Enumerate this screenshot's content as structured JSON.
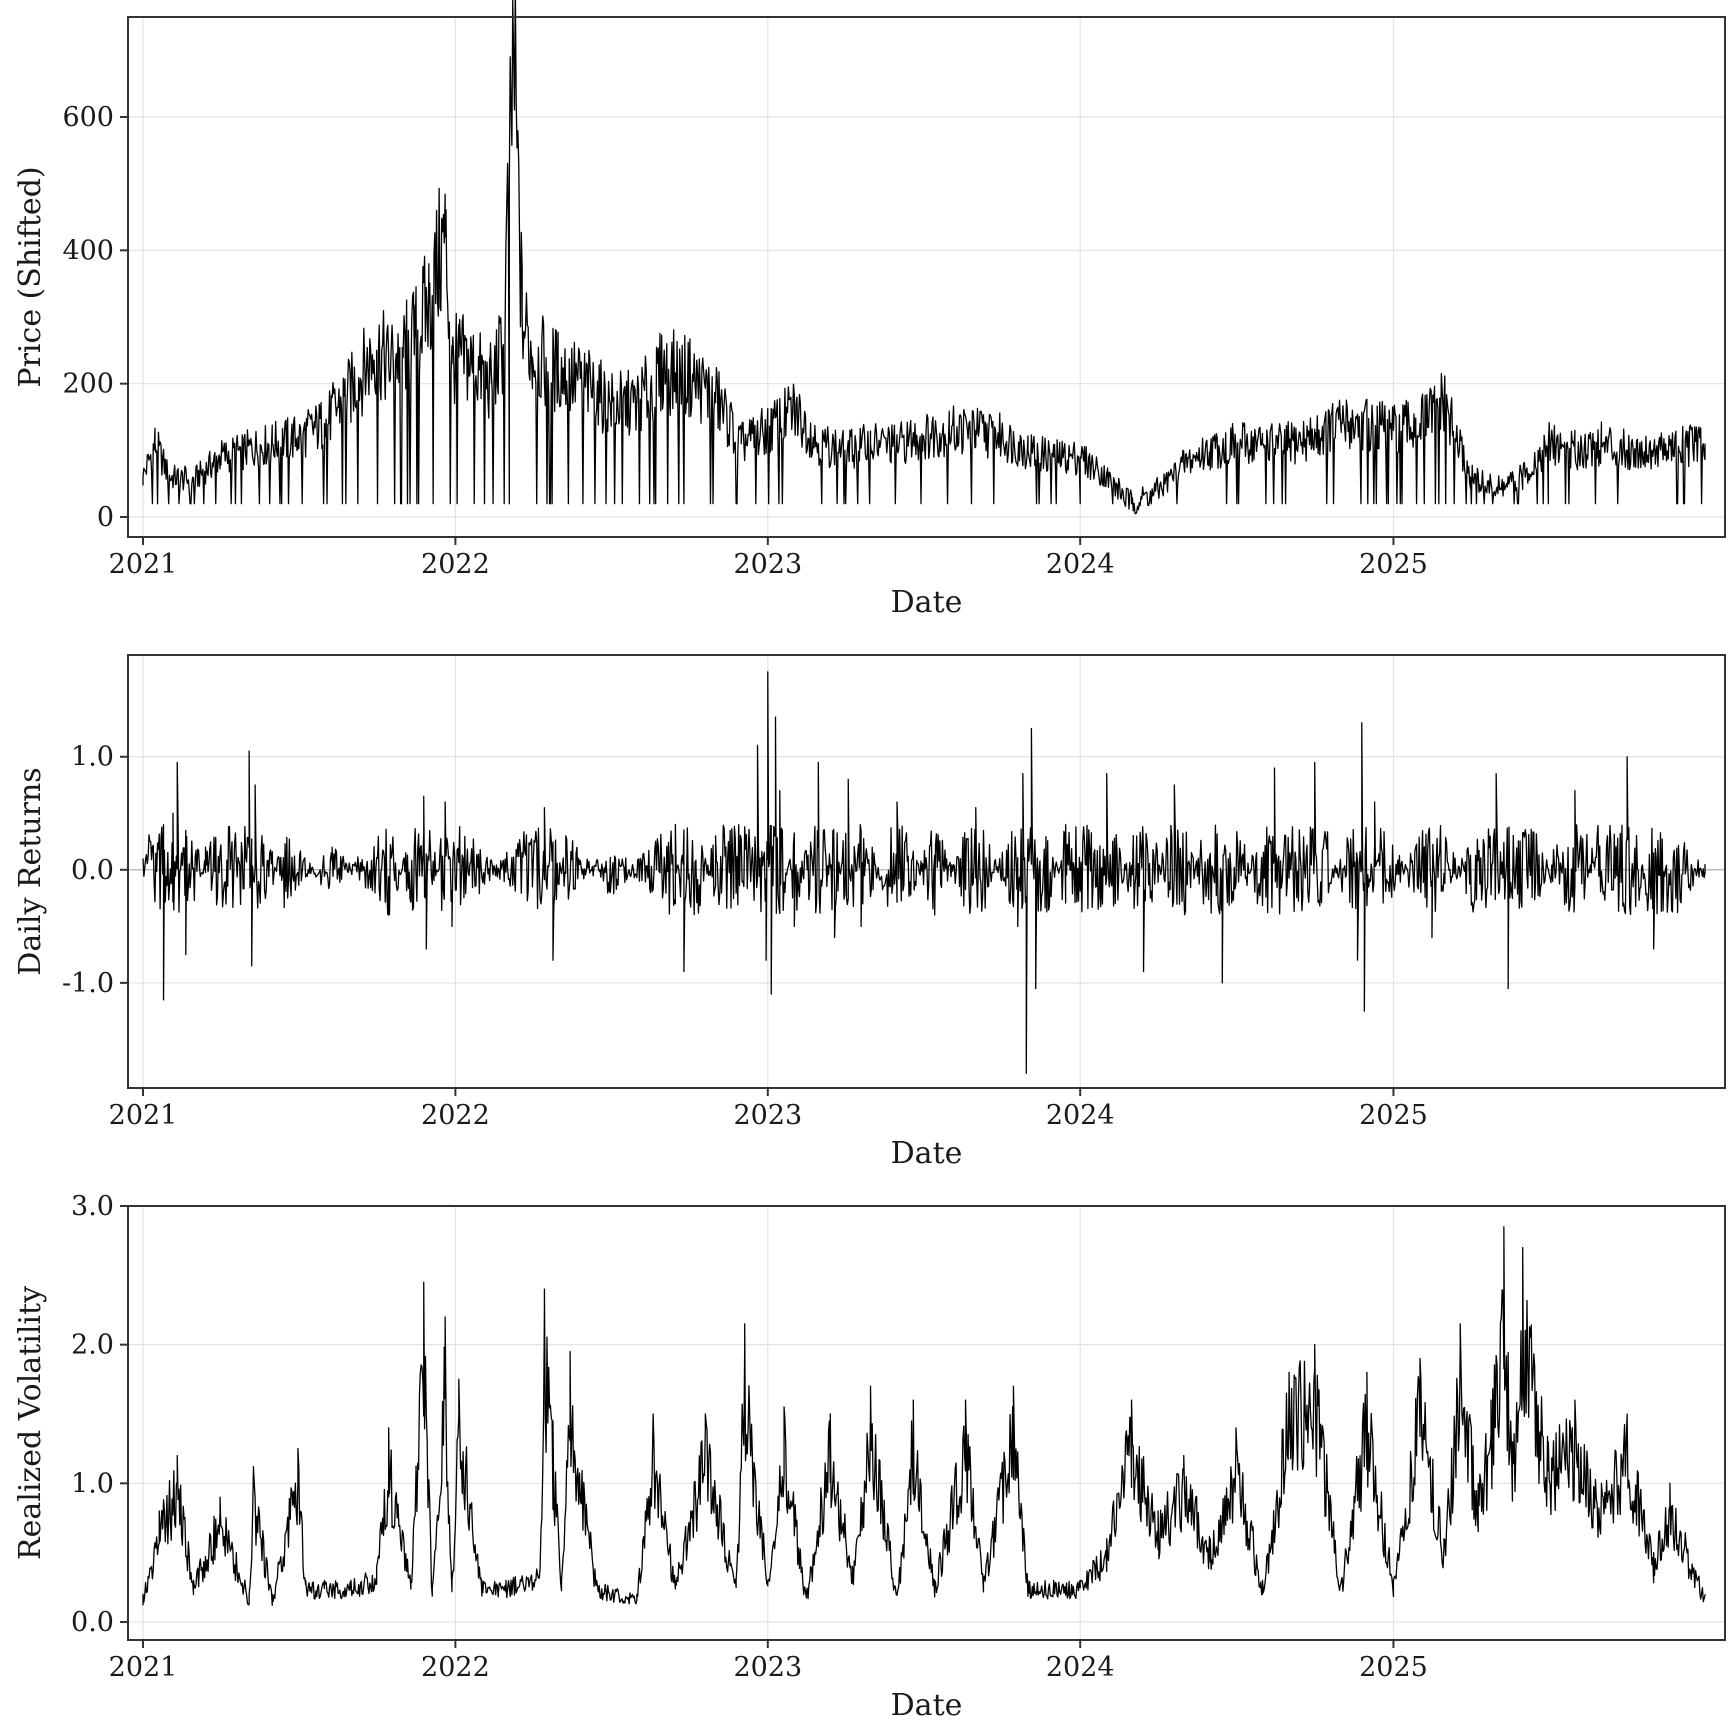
{
  "chart_data": [
    {
      "type": "line",
      "xlabel": "Date",
      "ylabel": "Price (Shifted)",
      "x_range": [
        "2021-01-01",
        "2025-12-31"
      ],
      "x_ticks": [
        "2021",
        "2022",
        "2023",
        "2024",
        "2025"
      ],
      "ylim": [
        -30,
        750
      ],
      "y_ticks": [
        0,
        200,
        400,
        600
      ],
      "y_tick_labels": [
        "0",
        "200",
        "400",
        "600"
      ],
      "grid": true,
      "series_color": "#000000",
      "series": [
        {
          "x": [
            "2021-01-01",
            "2021-01-15",
            "2021-02-01",
            "2021-03-01",
            "2021-04-01",
            "2021-05-01",
            "2021-06-01",
            "2021-07-01",
            "2021-08-01",
            "2021-09-01",
            "2021-10-01",
            "2021-10-15",
            "2021-11-01",
            "2021-11-15",
            "2021-12-01",
            "2021-12-20",
            "2021-12-28",
            "2022-01-05",
            "2022-01-20",
            "2022-02-10",
            "2022-02-25",
            "2022-03-05",
            "2022-03-10",
            "2022-03-20",
            "2022-04-01",
            "2022-05-01",
            "2022-06-01",
            "2022-07-01",
            "2022-08-01",
            "2022-09-01",
            "2022-10-01",
            "2022-11-01",
            "2022-12-01",
            "2023-01-01",
            "2023-02-01",
            "2023-03-01",
            "2023-04-01",
            "2023-05-01",
            "2023-06-01",
            "2023-07-01",
            "2023-08-01",
            "2023-09-01",
            "2023-10-01",
            "2023-11-01",
            "2023-12-01",
            "2024-01-01",
            "2024-02-01",
            "2024-03-01",
            "2024-04-01",
            "2024-05-01",
            "2024-06-01",
            "2024-07-01",
            "2024-08-01",
            "2024-09-01",
            "2024-10-01",
            "2024-11-01",
            "2024-12-01",
            "2025-01-01",
            "2025-02-01",
            "2025-03-01",
            "2025-04-01",
            "2025-05-01",
            "2025-06-01",
            "2025-07-01",
            "2025-08-01",
            "2025-09-01",
            "2025-10-01",
            "2025-11-01",
            "2025-12-31"
          ],
          "values": [
            60,
            110,
            60,
            55,
            90,
            100,
            110,
            120,
            140,
            190,
            250,
            230,
            250,
            270,
            320,
            420,
            230,
            240,
            230,
            200,
            250,
            500,
            700,
            300,
            240,
            220,
            200,
            170,
            170,
            220,
            210,
            180,
            110,
            130,
            160,
            110,
            100,
            110,
            110,
            120,
            130,
            130,
            120,
            100,
            90,
            90,
            60,
            20,
            40,
            80,
            100,
            110,
            110,
            110,
            120,
            140,
            140,
            130,
            140,
            170,
            60,
            40,
            60,
            110,
            100,
            110,
            100,
            100,
            110
          ]
        }
      ]
    },
    {
      "type": "line",
      "xlabel": "Date",
      "ylabel": "Daily Returns",
      "x_range": [
        "2021-01-01",
        "2025-12-31"
      ],
      "x_ticks": [
        "2021",
        "2022",
        "2023",
        "2024",
        "2025"
      ],
      "ylim": [
        -1.93,
        1.9
      ],
      "y_ticks": [
        -1.0,
        0.0,
        1.0
      ],
      "y_tick_labels": [
        "-1.0",
        "0.0",
        "1.0"
      ],
      "grid": true,
      "zero_line": true,
      "series_color": "#000000",
      "series": [
        {
          "x": [
            "2021-01-01",
            "2021-01-25",
            "2021-02-05",
            "2021-02-10",
            "2021-02-20",
            "2021-03-15",
            "2021-05-05",
            "2021-05-08",
            "2021-05-12",
            "2021-06-15",
            "2021-08-10",
            "2021-10-15",
            "2021-11-25",
            "2021-11-28",
            "2021-12-20",
            "2021-12-28",
            "2022-04-15",
            "2022-04-25",
            "2022-05-10",
            "2022-07-01",
            "2022-09-15",
            "2022-09-25",
            "2022-11-01",
            "2022-12-20",
            "2022-12-30",
            "2023-01-01",
            "2023-01-05",
            "2023-01-10",
            "2023-01-15",
            "2023-02-01",
            "2023-03-01",
            "2023-03-20",
            "2023-04-05",
            "2023-04-20",
            "2023-06-01",
            "2023-07-15",
            "2023-09-01",
            "2023-10-20",
            "2023-10-26",
            "2023-10-30",
            "2023-11-05",
            "2023-11-10",
            "2023-12-15",
            "2024-02-01",
            "2024-03-15",
            "2024-04-20",
            "2024-06-15",
            "2024-08-15",
            "2024-10-01",
            "2024-11-20",
            "2024-11-25",
            "2024-11-28",
            "2024-12-10",
            "2025-02-15",
            "2025-05-01",
            "2025-05-15",
            "2025-08-01",
            "2025-10-01",
            "2025-11-01",
            "2025-12-31"
          ],
          "values": [
            0.1,
            -1.15,
            0.5,
            0.95,
            -0.75,
            0.2,
            1.05,
            -0.85,
            0.75,
            -0.3,
            0.2,
            -0.4,
            0.65,
            -0.7,
            0.6,
            -0.5,
            0.55,
            -0.8,
            0.3,
            -0.2,
            0.4,
            -0.9,
            0.3,
            1.1,
            -0.8,
            1.75,
            -1.1,
            1.35,
            0.7,
            -0.5,
            0.95,
            -0.6,
            0.8,
            -0.5,
            0.6,
            -0.4,
            0.55,
            -0.5,
            0.85,
            -1.8,
            1.25,
            -1.05,
            0.4,
            0.85,
            -0.9,
            0.75,
            -1.0,
            0.9,
            0.95,
            -0.8,
            1.3,
            -1.25,
            0.6,
            -0.6,
            0.85,
            -1.05,
            0.7,
            1.0,
            -0.7,
            0.05
          ]
        }
      ]
    },
    {
      "type": "line",
      "xlabel": "Date",
      "ylabel": "Realized Volatility",
      "x_range": [
        "2021-01-01",
        "2025-12-31"
      ],
      "x_ticks": [
        "2021",
        "2022",
        "2023",
        "2024",
        "2025"
      ],
      "ylim": [
        -0.13,
        3.0
      ],
      "y_ticks": [
        0.0,
        1.0,
        2.0,
        3.0
      ],
      "y_tick_labels": [
        "0.0",
        "1.0",
        "2.0",
        "3.0"
      ],
      "grid": true,
      "series_color": "#000000",
      "series": [
        {
          "x": [
            "2021-01-01",
            "2021-01-20",
            "2021-02-10",
            "2021-03-01",
            "2021-04-01",
            "2021-05-05",
            "2021-05-10",
            "2021-06-01",
            "2021-07-01",
            "2021-07-10",
            "2021-08-01",
            "2021-09-01",
            "2021-10-01",
            "2021-10-15",
            "2021-11-10",
            "2021-11-25",
            "2021-12-05",
            "2021-12-20",
            "2021-12-28",
            "2022-01-05",
            "2022-02-01",
            "2022-03-01",
            "2022-04-10",
            "2022-04-15",
            "2022-04-25",
            "2022-05-05",
            "2022-05-15",
            "2022-06-15",
            "2022-08-01",
            "2022-08-20",
            "2022-09-15",
            "2022-10-20",
            "2022-11-25",
            "2022-12-05",
            "2023-01-01",
            "2023-01-20",
            "2023-02-15",
            "2023-03-15",
            "2023-04-10",
            "2023-05-01",
            "2023-06-01",
            "2023-06-20",
            "2023-07-15",
            "2023-08-20",
            "2023-09-10",
            "2023-10-15",
            "2023-11-01",
            "2023-12-01",
            "2024-01-01",
            "2024-02-01",
            "2024-03-01",
            "2024-04-01",
            "2024-05-01",
            "2024-06-01",
            "2024-07-01",
            "2024-08-01",
            "2024-09-01",
            "2024-10-01",
            "2024-11-01",
            "2024-12-01",
            "2025-01-01",
            "2025-02-01",
            "2025-03-01",
            "2025-03-20",
            "2025-04-10",
            "2025-04-25",
            "2025-05-10",
            "2025-05-20",
            "2025-06-01",
            "2025-07-01",
            "2025-08-01",
            "2025-09-01",
            "2025-10-01",
            "2025-11-01",
            "2025-11-20",
            "2025-12-31"
          ],
          "values": [
            0.2,
            0.8,
            1.2,
            0.3,
            0.9,
            0.2,
            1.12,
            0.2,
            1.25,
            0.3,
            0.3,
            0.3,
            0.4,
            1.4,
            0.3,
            2.45,
            0.25,
            2.2,
            0.3,
            1.75,
            0.3,
            0.3,
            0.4,
            2.4,
            1.45,
            0.3,
            1.95,
            0.3,
            0.2,
            1.5,
            0.3,
            1.5,
            0.3,
            2.15,
            0.3,
            1.55,
            0.2,
            1.5,
            0.4,
            1.7,
            0.2,
            1.6,
            0.3,
            1.6,
            0.3,
            1.7,
            0.3,
            0.3,
            0.3,
            0.6,
            1.6,
            0.8,
            1.2,
            0.6,
            1.4,
            0.3,
            1.8,
            2.0,
            0.3,
            1.8,
            0.3,
            1.9,
            0.6,
            2.15,
            1.0,
            1.6,
            2.85,
            1.3,
            2.7,
            1.3,
            1.6,
            1.0,
            1.5,
            0.5,
            1.0,
            0.2
          ]
        }
      ]
    }
  ]
}
